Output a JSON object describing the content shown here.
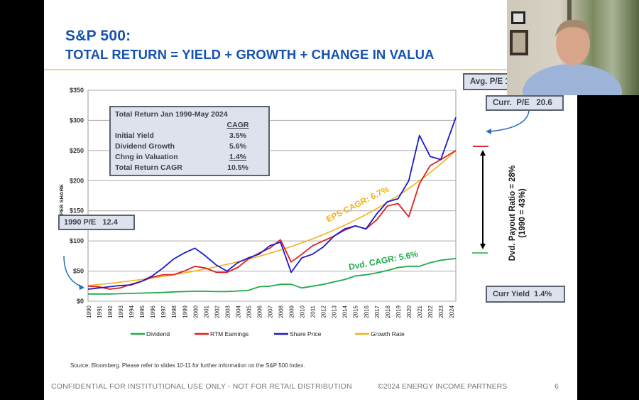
{
  "slide": {
    "title_line1": "S&P 500:",
    "title_line2": "TOTAL RETURN = YIELD + GROWTH + CHANGE IN VALUA",
    "source": "Source: Bloomberg.  Please refer to slides 10-11 for further information on the S&P 500 Index.",
    "footer_left": "CONFIDENTIAL FOR INSTITUTIONAL USE ONLY - NOT FOR RETAIL DISTRIBUTION",
    "footer_mid": "©2024 ENERGY INCOME PARTNERS",
    "page_number": "6"
  },
  "summary_box": {
    "title": "Total Return Jan 1990-May 2024",
    "col_header": "CAGR",
    "rows": [
      {
        "label": "Initial Yield",
        "value": "3.5%"
      },
      {
        "label": "Dividend Growth",
        "value": "5.6%"
      },
      {
        "label": "Chng in Valuation",
        "value": "1.4%"
      },
      {
        "label": "Total Return CAGR",
        "value": "10.5%"
      }
    ]
  },
  "callouts": {
    "pe_1990": "1990 P/E   12.4",
    "avg_pe": "Avg. P/E 1",
    "curr_pe": "Curr.  P/E   20.6",
    "curr_yield": "Curr Yield  1.4%",
    "payout_line1": "Dvd. Payout Ratio = 28%",
    "payout_line2": "(1990 = 43%)",
    "eps_cagr": "EPS CAGR: 6.7%",
    "dvd_cagr": "Dvd. CAGR: 5.6%"
  },
  "colors": {
    "title_blue": "#1553b0",
    "dividend": "#1faa4a",
    "earnings": "#e02020",
    "share_price": "#1a1acc",
    "growth_rate": "#f2b21c"
  },
  "webcam": {
    "description": "presenter video feed"
  },
  "chart_data": {
    "type": "line",
    "title": "",
    "xlabel": "",
    "ylabel": "PER SHARE",
    "ylim": [
      0,
      350
    ],
    "y_ticks": [
      "$0",
      "$50",
      "$100",
      "$150",
      "$200",
      "$250",
      "$300",
      "$350"
    ],
    "y_tick_values": [
      0,
      50,
      100,
      150,
      200,
      250,
      300,
      350
    ],
    "x_ticks": [
      "1990",
      "1991",
      "1992",
      "1993",
      "1994",
      "1995",
      "1996",
      "1997",
      "1998",
      "1999",
      "2000",
      "2001",
      "2002",
      "2003",
      "2004",
      "2005",
      "2006",
      "2007",
      "2008",
      "2009",
      "2010",
      "2011",
      "2012",
      "2013",
      "2014",
      "2015",
      "2016",
      "2017",
      "2018",
      "2019",
      "2020",
      "2021",
      "2022",
      "2023",
      "2024"
    ],
    "grid": true,
    "legend": "bottom",
    "x": [
      1990,
      1991,
      1992,
      1993,
      1994,
      1995,
      1996,
      1997,
      1998,
      1999,
      2000,
      2001,
      2002,
      2003,
      2004,
      2005,
      2006,
      2007,
      2008,
      2009,
      2010,
      2011,
      2012,
      2013,
      2014,
      2015,
      2016,
      2017,
      2018,
      2019,
      2020,
      2021,
      2022,
      2023,
      2024.4
    ],
    "series": [
      {
        "name": "Dividend",
        "values": [
          12,
          12,
          12,
          12.5,
          13,
          13.5,
          14,
          14.5,
          15.5,
          16,
          16.5,
          16.5,
          16,
          16,
          17,
          18,
          24,
          25,
          28,
          28,
          22,
          25,
          28,
          32,
          36,
          42,
          44,
          47,
          51,
          56,
          58,
          58,
          64,
          68,
          71
        ]
      },
      {
        "name": "RTM Earnings",
        "values": [
          25,
          24,
          20,
          22,
          28,
          33,
          40,
          44,
          44,
          50,
          58,
          55,
          48,
          48,
          56,
          70,
          80,
          88,
          102,
          65,
          78,
          92,
          100,
          108,
          118,
          125,
          120,
          135,
          158,
          162,
          140,
          195,
          225,
          235,
          250
        ]
      },
      {
        "name": "Share Price",
        "values": [
          20,
          22,
          24,
          26,
          27,
          33,
          42,
          55,
          70,
          80,
          88,
          75,
          60,
          50,
          64,
          72,
          78,
          92,
          98,
          48,
          72,
          78,
          90,
          108,
          120,
          125,
          120,
          145,
          165,
          170,
          200,
          275,
          240,
          235,
          305
        ]
      },
      {
        "name": "Growth Rate",
        "values": [
          26,
          27.5,
          29,
          31,
          32.5,
          34.5,
          36.5,
          39,
          41.5,
          44,
          46.5,
          49.5,
          52.5,
          56,
          59.5,
          63.5,
          67.5,
          72,
          76.5,
          81.5,
          86.5,
          92,
          98,
          104.5,
          111,
          118,
          125.5,
          133.5,
          142.5,
          151.5,
          161.5,
          172,
          183.5,
          195.5,
          250
        ]
      }
    ],
    "annotations": [
      "EPS CAGR: 6.7%",
      "Dvd. CAGR: 5.6%"
    ]
  }
}
